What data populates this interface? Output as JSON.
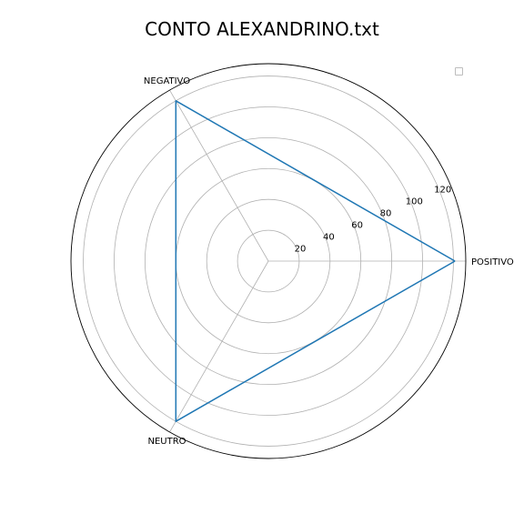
{
  "chart_data": {
    "type": "radar",
    "title": "CONTO ALEXANDRINO.txt",
    "categories": [
      "POSITIVO",
      "NEGATIVO",
      "NEUTRO"
    ],
    "series": [
      {
        "values": [
          121,
          120,
          120
        ],
        "color": "#1f77b4"
      }
    ],
    "rlim": [
      0,
      128
    ],
    "rticks": [
      20,
      40,
      60,
      80,
      100,
      120
    ],
    "grid": true,
    "legend": "top-right"
  }
}
